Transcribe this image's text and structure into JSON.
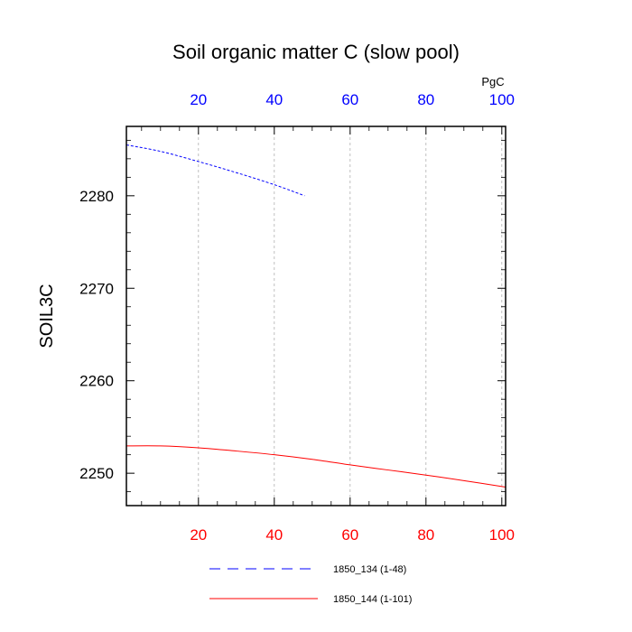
{
  "chart_data": {
    "type": "line",
    "title": "Soil organic matter C (slow pool)",
    "ylabel": "SOIL3C",
    "units_label": "PgC",
    "xlim": [
      1,
      101
    ],
    "ylim": [
      2246.5,
      2287.5
    ],
    "x_ticks": [
      20,
      40,
      60,
      80,
      100
    ],
    "y_ticks": [
      2250,
      2260,
      2270,
      2280
    ],
    "grid": "vertical-dashed",
    "bottom_axis_color": "#ff0000",
    "top_axis_color": "#0000ff",
    "legend_position": "bottom",
    "series": [
      {
        "name": "1850_134 (1-48)",
        "color": "#0000ff",
        "style": "dashed",
        "x": [
          1,
          10,
          20,
          30,
          40,
          48
        ],
        "y": [
          2285.5,
          2284.8,
          2283.7,
          2282.5,
          2281.2,
          2280.0
        ]
      },
      {
        "name": "1850_144 (1-101)",
        "color": "#ff0000",
        "style": "solid",
        "x": [
          1,
          10,
          20,
          30,
          40,
          50,
          60,
          70,
          80,
          90,
          101
        ],
        "y": [
          2252.95,
          2252.95,
          2252.75,
          2252.4,
          2252.0,
          2251.5,
          2250.9,
          2250.35,
          2249.8,
          2249.2,
          2248.5
        ]
      }
    ]
  }
}
